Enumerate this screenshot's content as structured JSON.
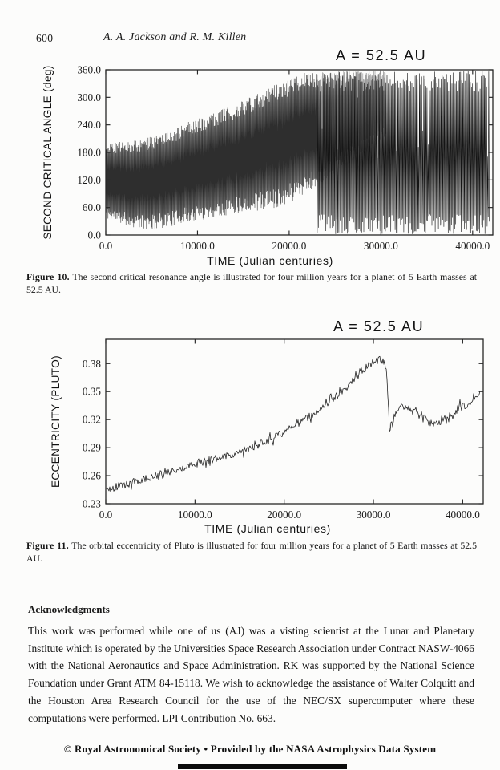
{
  "page": {
    "number": "600",
    "running_head": "A. A. Jackson and R. M. Killen",
    "footer": "© Royal Astronomical Society  •  Provided by the NASA Astrophysics Data System"
  },
  "figures": [
    {
      "label": "Figure 10.",
      "caption": "The second critical resonance angle is illustrated for four million years for a planet of 5 Earth masses at 52.5 AU.",
      "annotation": "A = 52.5 AU"
    },
    {
      "label": "Figure 11.",
      "caption": "The orbital eccentricity of Pluto is illustrated for four million years for a planet of 5 Earth masses at 52.5 AU.",
      "annotation": "A = 52.5 AU"
    }
  ],
  "acknowledgments": {
    "heading": "Acknowledgments",
    "text": "This work was performed while one of us (AJ) was a visting scientist at the Lunar and Planetary Institute which is operated by the Universities Space Research Association under Contract NASW-4066 with the National Aeronautics and Space Administration. RK was supported by the National Science Foundation under Grant ATM 84-15118. We wish to acknowledge the assistance of Walter Colquitt and the Houston Area Research Council for the use of the NEC/SX supercomputer where these computations were performed. LPI Contribution No. 663."
  },
  "colors": {
    "ink": "#1b1b1b",
    "frame": "#262626",
    "series_black": "#151515",
    "libration_dark": "#2e2e2e",
    "libration_grey": "#8f8f8f",
    "paper": "#fcfcfb"
  },
  "chart_data": [
    {
      "type": "line",
      "title": "A = 52.5 AU",
      "xlabel": "TIME (Julian centuries)",
      "ylabel": "SECOND CRITICAL ANGLE (deg)",
      "xlim": [
        0,
        42200
      ],
      "ylim": [
        0,
        360
      ],
      "xticks": [
        0,
        10000,
        20000,
        30000,
        40000
      ],
      "xtick_labels": [
        "0.0",
        "10000.0",
        "20000.0",
        "30000.0",
        "40000.0"
      ],
      "yticks": [
        0,
        60,
        120,
        180,
        240,
        300,
        360
      ],
      "ytick_labels": [
        "0.0",
        "60.0",
        "120.0",
        "180.0",
        "240.0",
        "300.0",
        "360.0"
      ],
      "grid": false,
      "legend": null,
      "description": "Dense fast oscillation: libration band widens and drifts upward from ~35-200 deg at t=0, then breaks into full 0-360 deg circulation after ~23000 Julian centuries.",
      "libration_envelope": [
        [
          0,
          35,
          200
        ],
        [
          2300,
          20,
          205
        ],
        [
          4600,
          10,
          212
        ],
        [
          6800,
          18,
          226
        ],
        [
          9000,
          27,
          247
        ],
        [
          11400,
          36,
          264
        ],
        [
          13800,
          45,
          282
        ],
        [
          16000,
          52,
          303
        ],
        [
          18200,
          58,
          325
        ],
        [
          20000,
          70,
          340
        ],
        [
          21200,
          85,
          352
        ],
        [
          23400,
          110,
          358
        ],
        [
          25500,
          145,
          358
        ],
        [
          27500,
          175,
          358
        ],
        [
          29500,
          200,
          358
        ],
        [
          30500,
          215,
          358
        ]
      ],
      "libration_split": 23000,
      "libration_end": 30500,
      "circulation": {
        "t_start": 23000,
        "t_end": 41800,
        "lo": 2,
        "hi": 358
      }
    },
    {
      "type": "line",
      "title": "A = 52.5 AU",
      "xlabel": "TIME (Julian centuries)",
      "ylabel": "ECCENTRICITY (PLUTO)",
      "xlim": [
        0,
        42300
      ],
      "ylim": [
        0.23,
        0.406
      ],
      "xticks": [
        0,
        10000,
        20000,
        30000,
        40000
      ],
      "xtick_labels": [
        "0.0",
        "10000.0",
        "20000.0",
        "30000.0",
        "40000.0"
      ],
      "yticks": [
        0.23,
        0.26,
        0.29,
        0.32,
        0.35,
        0.38
      ],
      "ytick_labels": [
        "0.23",
        "0.26",
        "0.29",
        "0.32",
        "0.35",
        "0.38"
      ],
      "grid": false,
      "legend": null,
      "noise_amplitude": 0.004,
      "series": [
        {
          "name": "Pluto eccentricity",
          "points": [
            [
              0,
              0.245
            ],
            [
              2000,
              0.25
            ],
            [
              4000,
              0.2555
            ],
            [
              6000,
              0.2615
            ],
            [
              8000,
              0.267
            ],
            [
              10000,
              0.2725
            ],
            [
              12000,
              0.2775
            ],
            [
              14000,
              0.2825
            ],
            [
              16000,
              0.289
            ],
            [
              17000,
              0.2925
            ],
            [
              18000,
              0.2965
            ],
            [
              19000,
              0.3015
            ],
            [
              20000,
              0.3065
            ],
            [
              21000,
              0.3125
            ],
            [
              22000,
              0.3185
            ],
            [
              23000,
              0.3245
            ],
            [
              24000,
              0.331
            ],
            [
              25000,
              0.3385
            ],
            [
              26000,
              0.346
            ],
            [
              27000,
              0.354
            ],
            [
              27500,
              0.359
            ],
            [
              28000,
              0.3645
            ],
            [
              28500,
              0.37
            ],
            [
              29000,
              0.3745
            ],
            [
              29500,
              0.378
            ],
            [
              30000,
              0.3815
            ],
            [
              30400,
              0.3835
            ],
            [
              30800,
              0.3845
            ],
            [
              31100,
              0.3835
            ],
            [
              31300,
              0.378
            ],
            [
              31450,
              0.37
            ],
            [
              31550,
              0.358
            ],
            [
              31650,
              0.34
            ],
            [
              31750,
              0.318
            ],
            [
              31820,
              0.298
            ],
            [
              31900,
              0.31
            ],
            [
              32000,
              0.318
            ],
            [
              32200,
              0.312
            ],
            [
              32400,
              0.322
            ],
            [
              32700,
              0.331
            ],
            [
              33000,
              0.338
            ],
            [
              33300,
              0.334
            ],
            [
              33600,
              0.329
            ],
            [
              34000,
              0.3335
            ],
            [
              34400,
              0.3295
            ],
            [
              34800,
              0.332
            ],
            [
              35200,
              0.327
            ],
            [
              35600,
              0.3225
            ],
            [
              36000,
              0.319
            ],
            [
              36400,
              0.3165
            ],
            [
              36900,
              0.3135
            ],
            [
              37400,
              0.317
            ],
            [
              37900,
              0.3215
            ],
            [
              38400,
              0.326
            ],
            [
              38900,
              0.3245
            ],
            [
              39400,
              0.331
            ],
            [
              39900,
              0.336
            ],
            [
              40400,
              0.3335
            ],
            [
              40900,
              0.34
            ],
            [
              41400,
              0.346
            ],
            [
              42000,
              0.351
            ]
          ]
        }
      ]
    }
  ]
}
